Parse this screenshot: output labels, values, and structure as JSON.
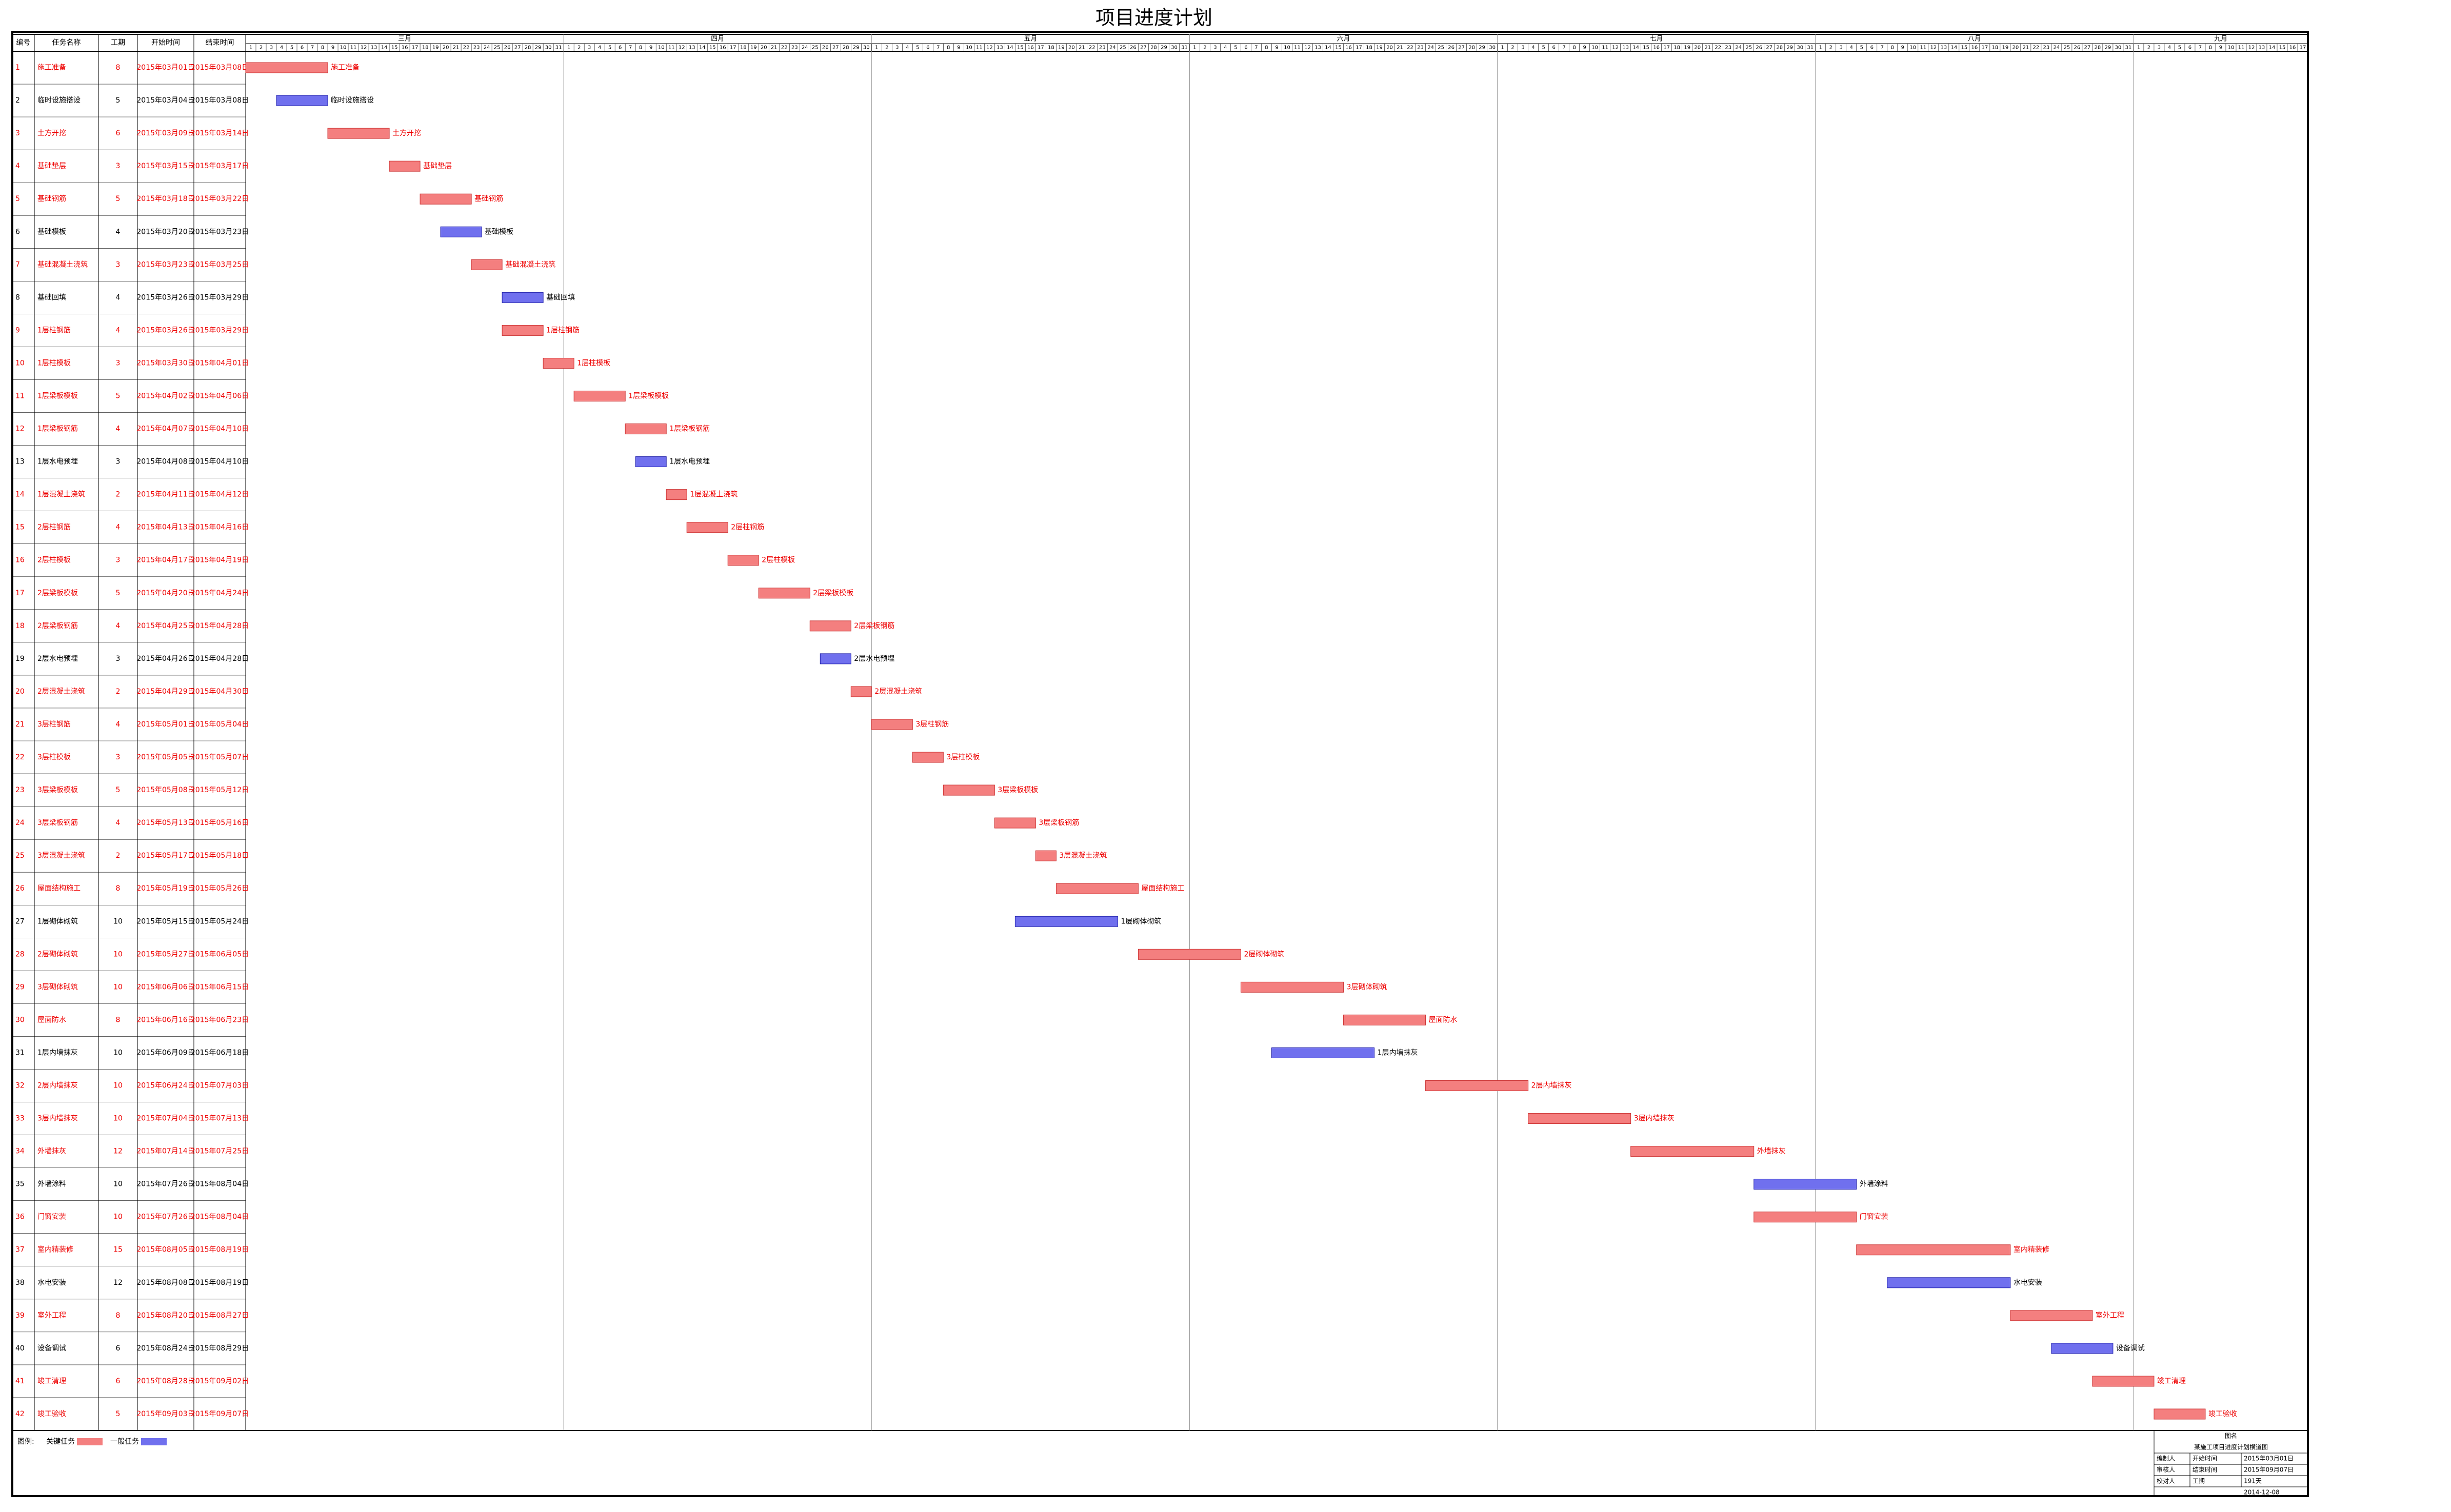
{
  "chart_data": {
    "type": "gantt",
    "title": "项目进度计划",
    "columns": [
      "编号",
      "任务名称",
      "工期",
      "开始时间",
      "结束时间"
    ],
    "months": [
      {
        "name": "三月",
        "days": [
          1,
          2,
          3,
          4,
          5,
          6,
          7,
          8,
          9,
          10,
          11,
          12,
          13,
          14,
          15,
          16,
          17,
          18,
          19,
          20,
          21,
          22,
          23,
          24,
          25,
          26,
          27,
          28,
          29,
          30,
          31
        ]
      },
      {
        "name": "四月",
        "days": [
          1,
          2,
          3,
          4,
          5,
          6,
          7,
          8,
          9,
          10,
          11,
          12,
          13,
          14,
          15,
          16,
          17,
          18,
          19,
          20,
          21,
          22,
          23,
          24,
          25,
          26,
          27,
          28,
          29,
          30
        ]
      },
      {
        "name": "五月",
        "days": [
          1,
          2,
          3,
          4,
          5,
          6,
          7,
          8,
          9,
          10,
          11,
          12,
          13,
          14,
          15,
          16,
          17,
          18,
          19,
          20,
          21,
          22,
          23,
          24,
          25,
          26,
          27,
          28,
          29,
          30,
          31
        ]
      },
      {
        "name": "六月",
        "days": [
          1,
          2,
          3,
          4,
          5,
          6,
          7,
          8,
          9,
          10,
          11,
          12,
          13,
          14,
          15,
          16,
          17,
          18,
          19,
          20,
          21,
          22,
          23,
          24,
          25,
          26,
          27,
          28,
          29,
          30
        ]
      },
      {
        "name": "七月",
        "days": [
          1,
          2,
          3,
          4,
          5,
          6,
          7,
          8,
          9,
          10,
          11,
          12,
          13,
          14,
          15,
          16,
          17,
          18,
          19,
          20,
          21,
          22,
          23,
          24,
          25,
          26,
          27,
          28,
          29,
          30,
          31
        ]
      },
      {
        "name": "八月",
        "days": [
          1,
          2,
          3,
          4,
          5,
          6,
          7,
          8,
          9,
          10,
          11,
          12,
          13,
          14,
          15,
          16,
          17,
          18,
          19,
          20,
          21,
          22,
          23,
          24,
          25,
          26,
          27,
          28,
          29,
          30,
          31
        ]
      },
      {
        "name": "九月",
        "days": [
          1,
          2,
          3,
          4,
          5,
          6,
          7,
          8,
          9,
          10,
          11,
          12,
          13,
          14,
          15,
          16,
          17
        ]
      }
    ],
    "critical_color": "#f47f7f",
    "normal_color": "#7070ee",
    "tasks": [
      {
        "id": 1,
        "name": "施工准备",
        "duration": 8,
        "start": "2015年03月01日",
        "end": "2015年03月08日",
        "critical": true
      },
      {
        "id": 2,
        "name": "临时设施搭设",
        "duration": 5,
        "start": "2015年03月04日",
        "end": "2015年03月08日",
        "critical": false
      },
      {
        "id": 3,
        "name": "土方开挖",
        "duration": 6,
        "start": "2015年03月09日",
        "end": "2015年03月14日",
        "critical": true
      },
      {
        "id": 4,
        "name": "基础垫层",
        "duration": 3,
        "start": "2015年03月15日",
        "end": "2015年03月17日",
        "critical": true
      },
      {
        "id": 5,
        "name": "基础钢筋",
        "duration": 5,
        "start": "2015年03月18日",
        "end": "2015年03月22日",
        "critical": true
      },
      {
        "id": 6,
        "name": "基础模板",
        "duration": 4,
        "start": "2015年03月20日",
        "end": "2015年03月23日",
        "critical": false
      },
      {
        "id": 7,
        "name": "基础混凝土浇筑",
        "duration": 3,
        "start": "2015年03月23日",
        "end": "2015年03月25日",
        "critical": true
      },
      {
        "id": 8,
        "name": "基础回填",
        "duration": 4,
        "start": "2015年03月26日",
        "end": "2015年03月29日",
        "critical": false
      },
      {
        "id": 9,
        "name": "1层柱钢筋",
        "duration": 4,
        "start": "2015年03月26日",
        "end": "2015年03月29日",
        "critical": true
      },
      {
        "id": 10,
        "name": "1层柱模板",
        "duration": 3,
        "start": "2015年03月30日",
        "end": "2015年04月01日",
        "critical": true
      },
      {
        "id": 11,
        "name": "1层梁板模板",
        "duration": 5,
        "start": "2015年04月02日",
        "end": "2015年04月06日",
        "critical": true
      },
      {
        "id": 12,
        "name": "1层梁板钢筋",
        "duration": 4,
        "start": "2015年04月07日",
        "end": "2015年04月10日",
        "critical": true
      },
      {
        "id": 13,
        "name": "1层水电预埋",
        "duration": 3,
        "start": "2015年04月08日",
        "end": "2015年04月10日",
        "critical": false
      },
      {
        "id": 14,
        "name": "1层混凝土浇筑",
        "duration": 2,
        "start": "2015年04月11日",
        "end": "2015年04月12日",
        "critical": true
      },
      {
        "id": 15,
        "name": "2层柱钢筋",
        "duration": 4,
        "start": "2015年04月13日",
        "end": "2015年04月16日",
        "critical": true
      },
      {
        "id": 16,
        "name": "2层柱模板",
        "duration": 3,
        "start": "2015年04月17日",
        "end": "2015年04月19日",
        "critical": true
      },
      {
        "id": 17,
        "name": "2层梁板模板",
        "duration": 5,
        "start": "2015年04月20日",
        "end": "2015年04月24日",
        "critical": true
      },
      {
        "id": 18,
        "name": "2层梁板钢筋",
        "duration": 4,
        "start": "2015年04月25日",
        "end": "2015年04月28日",
        "critical": true
      },
      {
        "id": 19,
        "name": "2层水电预埋",
        "duration": 3,
        "start": "2015年04月26日",
        "end": "2015年04月28日",
        "critical": false
      },
      {
        "id": 20,
        "name": "2层混凝土浇筑",
        "duration": 2,
        "start": "2015年04月29日",
        "end": "2015年04月30日",
        "critical": true
      },
      {
        "id": 21,
        "name": "3层柱钢筋",
        "duration": 4,
        "start": "2015年05月01日",
        "end": "2015年05月04日",
        "critical": true
      },
      {
        "id": 22,
        "name": "3层柱模板",
        "duration": 3,
        "start": "2015年05月05日",
        "end": "2015年05月07日",
        "critical": true
      },
      {
        "id": 23,
        "name": "3层梁板模板",
        "duration": 5,
        "start": "2015年05月08日",
        "end": "2015年05月12日",
        "critical": true
      },
      {
        "id": 24,
        "name": "3层梁板钢筋",
        "duration": 4,
        "start": "2015年05月13日",
        "end": "2015年05月16日",
        "critical": true
      },
      {
        "id": 25,
        "name": "3层混凝土浇筑",
        "duration": 2,
        "start": "2015年05月17日",
        "end": "2015年05月18日",
        "critical": true
      },
      {
        "id": 26,
        "name": "屋面结构施工",
        "duration": 8,
        "start": "2015年05月19日",
        "end": "2015年05月26日",
        "critical": true
      },
      {
        "id": 27,
        "name": "1层砌体砌筑",
        "duration": 10,
        "start": "2015年05月15日",
        "end": "2015年05月24日",
        "critical": false
      },
      {
        "id": 28,
        "name": "2层砌体砌筑",
        "duration": 10,
        "start": "2015年05月27日",
        "end": "2015年06月05日",
        "critical": true
      },
      {
        "id": 29,
        "name": "3层砌体砌筑",
        "duration": 10,
        "start": "2015年06月06日",
        "end": "2015年06月15日",
        "critical": true
      },
      {
        "id": 30,
        "name": "屋面防水",
        "duration": 8,
        "start": "2015年06月16日",
        "end": "2015年06月23日",
        "critical": true
      },
      {
        "id": 31,
        "name": "1层内墙抹灰",
        "duration": 10,
        "start": "2015年06月09日",
        "end": "2015年06月18日",
        "critical": false
      },
      {
        "id": 32,
        "name": "2层内墙抹灰",
        "duration": 10,
        "start": "2015年06月24日",
        "end": "2015年07月03日",
        "critical": true
      },
      {
        "id": 33,
        "name": "3层内墙抹灰",
        "duration": 10,
        "start": "2015年07月04日",
        "end": "2015年07月13日",
        "critical": true
      },
      {
        "id": 34,
        "name": "外墙抹灰",
        "duration": 12,
        "start": "2015年07月14日",
        "end": "2015年07月25日",
        "critical": true
      },
      {
        "id": 35,
        "name": "外墙涂料",
        "duration": 10,
        "start": "2015年07月26日",
        "end": "2015年08月04日",
        "critical": false
      },
      {
        "id": 36,
        "name": "门窗安装",
        "duration": 10,
        "start": "2015年07月26日",
        "end": "2015年08月04日",
        "critical": true
      },
      {
        "id": 37,
        "name": "室内精装修",
        "duration": 15,
        "start": "2015年08月05日",
        "end": "2015年08月19日",
        "critical": true
      },
      {
        "id": 38,
        "name": "水电安装",
        "duration": 12,
        "start": "2015年08月08日",
        "end": "2015年08月19日",
        "critical": false
      },
      {
        "id": 39,
        "name": "室外工程",
        "duration": 8,
        "start": "2015年08月20日",
        "end": "2015年08月27日",
        "critical": true
      },
      {
        "id": 40,
        "name": "设备调试",
        "duration": 6,
        "start": "2015年08月24日",
        "end": "2015年08月29日",
        "critical": false
      },
      {
        "id": 41,
        "name": "竣工清理",
        "duration": 6,
        "start": "2015年08月28日",
        "end": "2015年09月02日",
        "critical": true
      },
      {
        "id": 42,
        "name": "竣工验收",
        "duration": 5,
        "start": "2015年09月03日",
        "end": "2015年09月07日",
        "critical": true
      }
    ],
    "legend": {
      "label": "图例:",
      "critical": "关键任务",
      "normal": "一般任务"
    },
    "info": {
      "title_label": "图名",
      "title": "某施工项目进度计划横道图",
      "rows": [
        [
          "编制人",
          "开始时间",
          "2015年03月01日"
        ],
        [
          "审核人",
          "结束时间",
          "2015年09月07日"
        ],
        [
          "校对人",
          "工期",
          "191天"
        ]
      ],
      "date": "2014-12-08"
    }
  }
}
